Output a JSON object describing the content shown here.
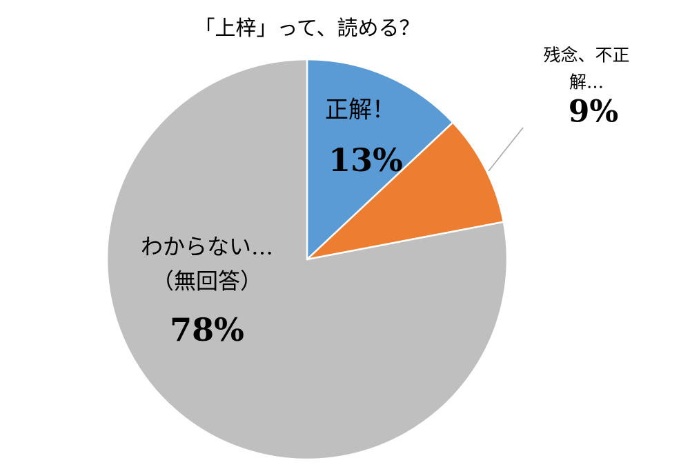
{
  "chart_data": {
    "type": "pie",
    "title": "「上梓」って、読める？",
    "categories": [
      "正解！",
      "残念、不正解…",
      "わからない…\n（無回答）"
    ],
    "values": [
      13,
      9,
      78
    ],
    "value_labels": [
      "13%",
      "9%",
      "78%"
    ],
    "colors": [
      "#5b9bd5",
      "#ed7d31",
      "#bfbfbf"
    ]
  }
}
